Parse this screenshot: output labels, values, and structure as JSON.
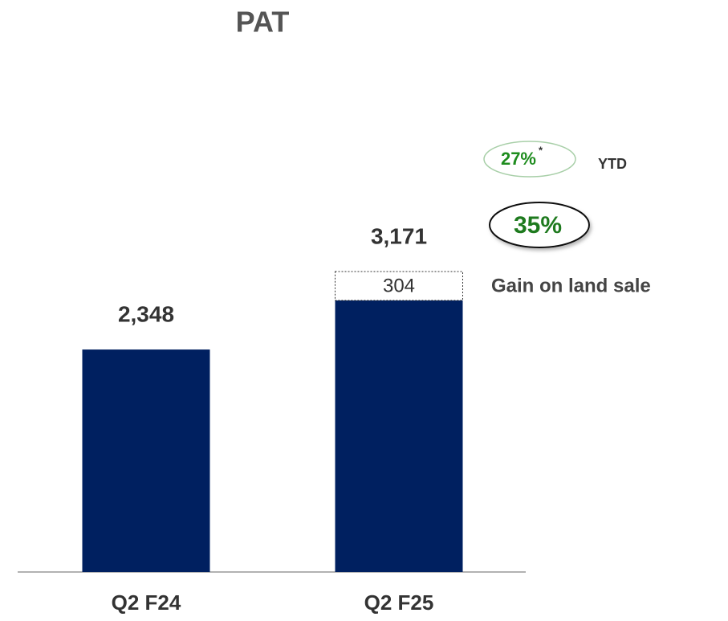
{
  "chart_data": {
    "type": "stacked_bar",
    "title": "PAT",
    "categories": [
      "Q2 F24",
      "Q2 F25"
    ],
    "series": [
      {
        "color": "#002060",
        "values": [
          2348,
          2867
        ]
      },
      {
        "name": "Gain on land sale",
        "color": "#ffffff",
        "values": [
          null,
          304
        ]
      }
    ],
    "totals": [
      2348,
      3171
    ],
    "total_labels": [
      "2,348",
      "3,171"
    ],
    "annotations": {
      "ytd_growth": "27%",
      "ytd_mark": "*",
      "ytd_label": "YTD",
      "quarter_growth": "35%"
    }
  }
}
